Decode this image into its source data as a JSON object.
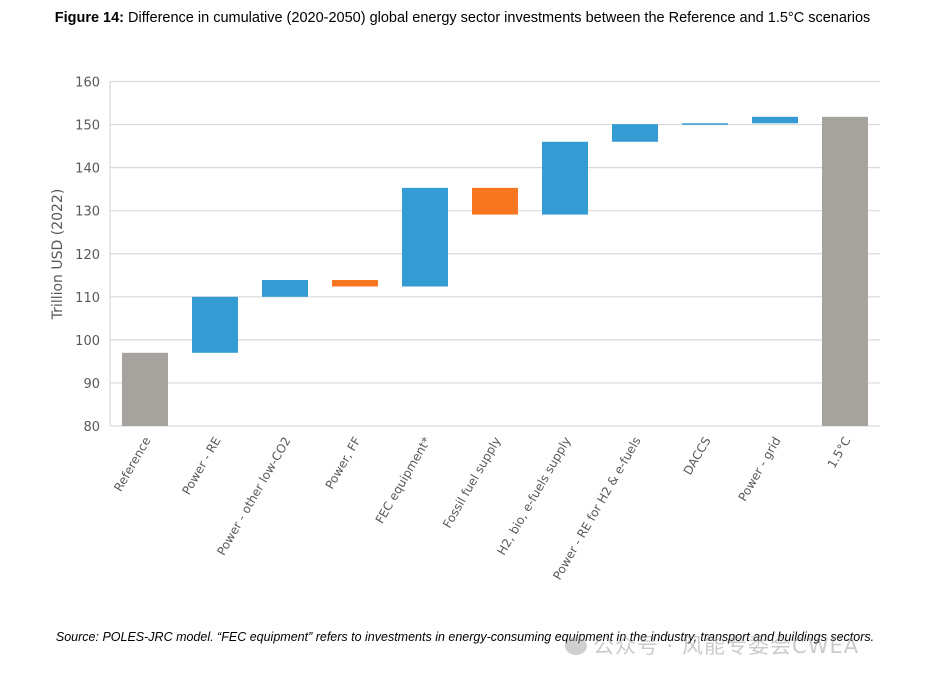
{
  "figure": {
    "title_bold": "Figure 14:",
    "title_rest": " Difference in cumulative (2020-2050) global energy sector investments between the Reference and 1.5°C scenarios",
    "caption": "Source: POLES-JRC model. “FEC equipment” refers to investments in energy-consuming equipment in the industry, transport and buildings sectors.",
    "watermark": "公众号 · 风能专委会CWEA"
  },
  "chart_data": {
    "type": "bar",
    "subtype": "waterfall",
    "title": "Difference in cumulative (2020-2050) global energy sector investments between the Reference and 1.5°C scenarios",
    "xlabel": "",
    "ylabel": "Trillion USD (2022)",
    "ylim": [
      80,
      160
    ],
    "yticks": [
      80,
      90,
      100,
      110,
      120,
      130,
      140,
      150,
      160
    ],
    "grid": true,
    "legend": "none",
    "colors": {
      "total": "#a6a39e",
      "increase": "#359bd3",
      "decrease": "#f7761f"
    },
    "categories": [
      "Reference",
      "Power - RE",
      "Power - other low-CO2",
      "Power, FF",
      "FEC equipment*",
      "Fossil fuel supply",
      "H2, bio, e-fuels supply",
      "Power - RE for H2 & e-fuels",
      "DACCS",
      "Power - grid",
      "1.5°C"
    ],
    "bars": [
      {
        "category": "Reference",
        "kind": "total",
        "start": 80,
        "end": 97.0
      },
      {
        "category": "Power - RE",
        "kind": "increase",
        "start": 97.0,
        "end": 110.0
      },
      {
        "category": "Power - other low-CO2",
        "kind": "increase",
        "start": 110.0,
        "end": 113.9
      },
      {
        "category": "Power, FF",
        "kind": "decrease",
        "start": 113.9,
        "end": 112.4
      },
      {
        "category": "FEC equipment*",
        "kind": "increase",
        "start": 112.4,
        "end": 135.3
      },
      {
        "category": "Fossil fuel supply",
        "kind": "decrease",
        "start": 135.3,
        "end": 129.1
      },
      {
        "category": "H2, bio, e-fuels supply",
        "kind": "increase",
        "start": 129.1,
        "end": 146.0
      },
      {
        "category": "Power - RE for H2 & e-fuels",
        "kind": "increase",
        "start": 146.0,
        "end": 150.1
      },
      {
        "category": "DACCS",
        "kind": "increase",
        "start": 150.1,
        "end": 150.3
      },
      {
        "category": "Power - grid",
        "kind": "increase",
        "start": 150.3,
        "end": 151.8
      },
      {
        "category": "1.5°C",
        "kind": "total",
        "start": 80,
        "end": 151.8
      }
    ]
  }
}
